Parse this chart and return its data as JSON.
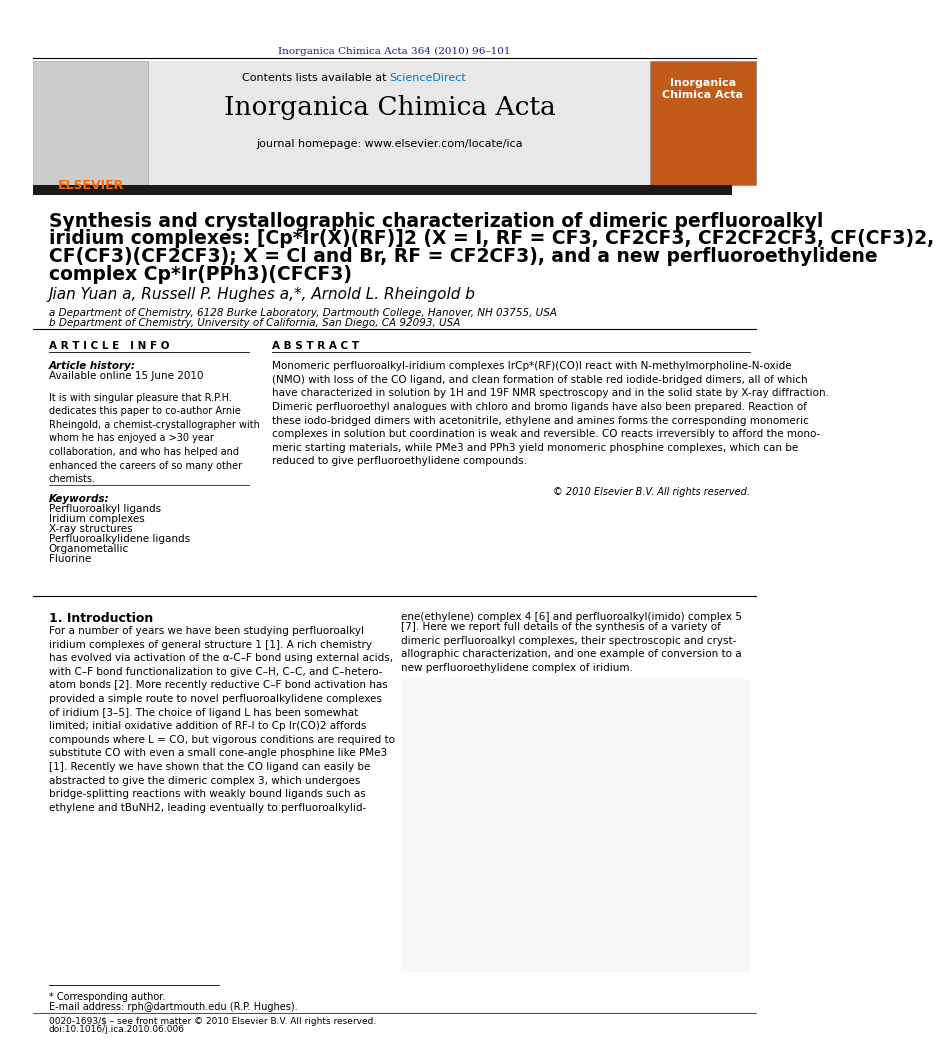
{
  "bg_color": "#ffffff",
  "header_journal_ref": "Inorganica Chimica Acta 364 (2010) 96–101",
  "header_journal_ref_color": "#1a237e",
  "contents_line": "Contents lists available at ScienceDirect",
  "journal_name": "Inorganica Chimica Acta",
  "journal_homepage": "journal homepage: www.elsevier.com/locate/ica",
  "sciencedirect_color": "#0077cc",
  "header_bg": "#e8e8e8",
  "black_bar_color": "#1a1a1a",
  "title_line1": "Synthesis and crystallographic characterization of dimeric perfluoroalkyl",
  "title_line2": "iridium complexes: [Cp*Ir(X)(RF)]2 (X = I, RF = CF3, CF2CF3, CF2CF2CF3, CF(CF3)2,",
  "title_line3": "CF(CF3)(CF2CF3); X = Cl and Br, RF = CF2CF3), and a new perfluoroethylidene",
  "title_line4": "complex Cp*Ir(PPh3)(CFCF3)",
  "authors": "Jian Yuan a, Russell P. Hughes a,*, Arnold L. Rheingold b",
  "affil_a": "a Department of Chemistry, 6128 Burke Laboratory, Dartmouth College, Hanover, NH 03755, USA",
  "affil_b": "b Department of Chemistry, University of California, San Diego, CA 92093, USA",
  "article_info_header": "A R T I C L E   I N F O",
  "abstract_header": "A B S T R A C T",
  "article_history_label": "Article history:",
  "available_online": "Available online 15 June 2010",
  "dedication_text": "It is with singular pleasure that R.P.H.\ndedicates this paper to co-author Arnie\nRheingold, a chemist-crystallographer with\nwhom he has enjoyed a >30 year\ncollaboration, and who has helped and\nenhanced the careers of so many other\nchemists.",
  "keywords_label": "Keywords:",
  "keywords": [
    "Perfluoroalkyl ligands",
    "Iridium complexes",
    "X-ray structures",
    "Perfluoroalkylidene ligands",
    "Organometallic",
    "Fluorine"
  ],
  "abstract_text": "Monomeric perfluoroalkyl-iridium complexes IrCp*(RF)(CO)I react with N-methylmorpholine-N-oxide\n(NMO) with loss of the CO ligand, and clean formation of stable red iodide-bridged dimers, all of which\nhave characterized in solution by 1H and 19F NMR spectroscopy and in the solid state by X-ray diffraction.\nDimeric perfluoroethyl analogues with chloro and bromo ligands have also been prepared. Reaction of\nthese iodo-bridged dimers with acetonitrile, ethylene and amines forms the corresponding monomeric\ncomplexes in solution but coordination is weak and reversible. CO reacts irreversibly to afford the mono-\nmeric starting materials, while PMe3 and PPh3 yield monomeric phosphine complexes, which can be\nreduced to give perfluoroethylidene compounds.",
  "copyright": "© 2010 Elsevier B.V. All rights reserved.",
  "intro_header": "1. Introduction",
  "intro_right_text": "ene(ethylene) complex 4 [6] and perfluoroalkyl(imido) complex 5",
  "intro_right_text2": "[7]. Here we report full details of the synthesis of a variety of\ndimeric perfluoroalkyl complexes, their spectroscopic and cryst-\nallographic characterization, and one example of conversion to a\nnew perfluoroethylidene complex of iridium.",
  "intro_left_text": "For a number of years we have been studying perfluoroalkyl\niridium complexes of general structure 1 [1]. A rich chemistry\nhas evolved via activation of the α-C–F bond using external acids,\nwith C–F bond functionalization to give C–H, C–C, and C–hetero-\natom bonds [2]. More recently reductive C–F bond activation has\nprovided a simple route to novel perfluoroalkylidene complexes\nof iridium [3–5]. The choice of ligand L has been somewhat\nlimited; initial oxidative addition of RF-I to Cp Ir(CO)2 affords\ncompounds where L = CO, but vigorous conditions are required to\nsubstitute CO with even a small cone-angle phosphine like PMe3\n[1]. Recently we have shown that the CO ligand can easily be\nabstracted to give the dimeric complex 3, which undergoes\nbridge-splitting reactions with weakly bound ligands such as\nethylene and tBuNH2, leading eventually to perfluoroalkylid-",
  "footnote_corr": "* Corresponding author.",
  "footnote_email": "E-mail address: rph@dartmouth.edu (R.P. Hughes).",
  "footnote_issn": "0020-1693/$ – see front matter © 2010 Elsevier B.V. All rights reserved.",
  "footnote_doi": "doi:10.1016/j.ica.2010.06.006",
  "elsevier_color": "#FF6600",
  "cover_bg": "#c25a1a"
}
